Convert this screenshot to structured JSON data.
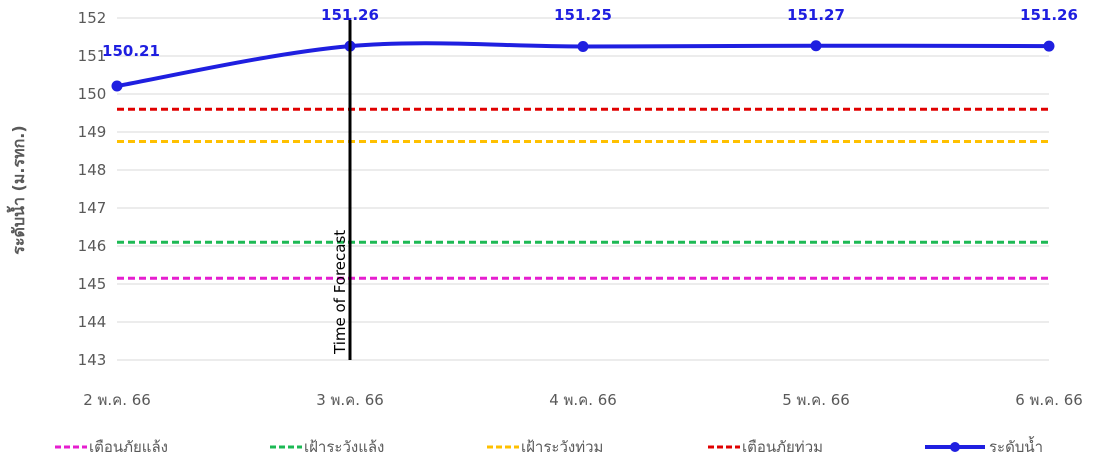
{
  "chart_data": {
    "type": "line",
    "title": "",
    "ylabel": "ระดับน้ำ (ม.รทก.)",
    "xlabel": "",
    "categories": [
      "2 พ.ค. 66",
      "3 พ.ค. 66",
      "4 พ.ค. 66",
      "5 พ.ค. 66",
      "6 พ.ค. 66"
    ],
    "ylim": [
      143,
      152
    ],
    "yticks": [
      "143",
      "144",
      "145",
      "146",
      "147",
      "148",
      "149",
      "150",
      "151",
      "152"
    ],
    "grid": true,
    "legend_position": "bottom",
    "series": [
      {
        "name": "เตือนภัยแล้ง",
        "style": "dashed",
        "color": "#E61ECF",
        "values": [
          145.15,
          145.15,
          145.15,
          145.15,
          145.15
        ]
      },
      {
        "name": "เฝ้าระวังแล้ง",
        "style": "dashed",
        "color": "#1DB954",
        "values": [
          146.1,
          146.1,
          146.1,
          146.1,
          146.1
        ]
      },
      {
        "name": "เฝ้าระวังท่วม",
        "style": "dashed",
        "color": "#FFC000",
        "values": [
          148.75,
          148.75,
          148.75,
          148.75,
          148.75
        ]
      },
      {
        "name": "เตือนภัยท่วม",
        "style": "dashed",
        "color": "#E00000",
        "values": [
          149.6,
          149.6,
          149.6,
          149.6,
          149.6
        ]
      },
      {
        "name": "ระดับน้ำ",
        "style": "solid-markers",
        "color": "#1F1FE0",
        "values": [
          150.21,
          151.26,
          151.25,
          151.27,
          151.26
        ],
        "labels": [
          "150.21",
          "151.26",
          "151.25",
          "151.27",
          "151.26"
        ]
      }
    ],
    "annotations": [
      {
        "type": "vertical-line",
        "x": "3 พ.ค. 66",
        "text": "Time of Forecast",
        "color": "#000000"
      }
    ]
  }
}
